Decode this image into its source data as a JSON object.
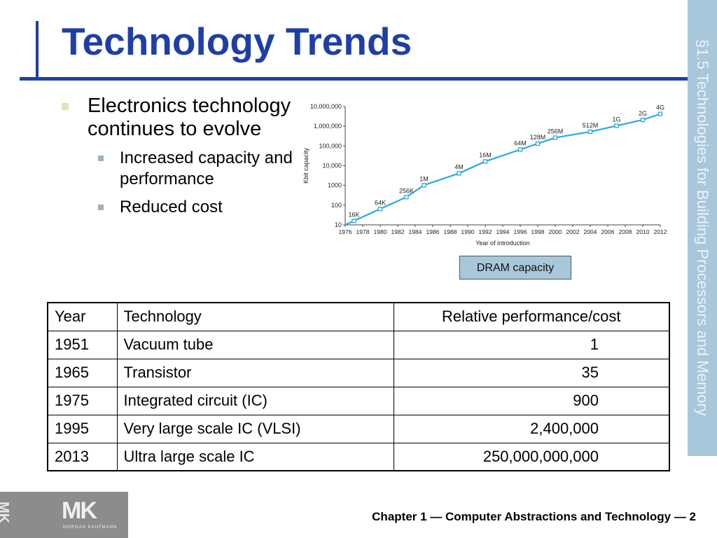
{
  "slide": {
    "title": "Technology Trends",
    "section": "§1.5 Technologies for Building Processors and Memory",
    "bullets": [
      {
        "text": "Electronics technology continues to evolve",
        "sub": [
          "Increased capacity and performance",
          "Reduced cost"
        ]
      }
    ],
    "chart_caption": "DRAM capacity",
    "footer": "Chapter 1 — Computer Abstractions and Technology — 2",
    "logo_text": "MK",
    "logo_subtext": "MORGAN KAUFMANN"
  },
  "table": {
    "headers": [
      "Year",
      "Technology",
      "Relative performance/cost"
    ],
    "rows": [
      [
        "1951",
        "Vacuum tube",
        "1"
      ],
      [
        "1965",
        "Transistor",
        "35"
      ],
      [
        "1975",
        "Integrated circuit (IC)",
        "900"
      ],
      [
        "1995",
        "Very large scale IC (VLSI)",
        "2,400,000"
      ],
      [
        "2013",
        "Ultra large scale IC",
        "250,000,000,000"
      ]
    ]
  },
  "chart_data": {
    "type": "line",
    "xlabel": "Year of introduction",
    "ylabel": "Kbit capacity",
    "log_y": true,
    "ylim": [
      10,
      10000000
    ],
    "xlim": [
      1976,
      2012
    ],
    "x_ticks": [
      "1976",
      "1978",
      "1980",
      "1982",
      "1984",
      "1986",
      "1988",
      "1990",
      "1992",
      "1994",
      "1996",
      "1998",
      "2000",
      "2002",
      "2004",
      "2006",
      "2008",
      "2010",
      "2012"
    ],
    "y_ticks": [
      "10",
      "100",
      "1000",
      "10,000",
      "100,000",
      "1,000,000",
      "10,000,000"
    ],
    "y_tick_values": [
      10,
      100,
      1000,
      10000,
      100000,
      1000000,
      10000000
    ],
    "series": [
      {
        "color": "#29a9e1",
        "points": [
          {
            "x": 1976,
            "y": 10,
            "label": ""
          },
          {
            "x": 1977,
            "y": 16,
            "label": "16K"
          },
          {
            "x": 1980,
            "y": 64,
            "label": "64K"
          },
          {
            "x": 1983,
            "y": 256,
            "label": "256K"
          },
          {
            "x": 1985,
            "y": 1024,
            "label": "1M"
          },
          {
            "x": 1989,
            "y": 4096,
            "label": "4M"
          },
          {
            "x": 1992,
            "y": 16384,
            "label": "16M"
          },
          {
            "x": 1996,
            "y": 65536,
            "label": "64M"
          },
          {
            "x": 1998,
            "y": 131072,
            "label": "128M"
          },
          {
            "x": 2000,
            "y": 262144,
            "label": "256M"
          },
          {
            "x": 2004,
            "y": 524288,
            "label": "512M"
          },
          {
            "x": 2007,
            "y": 1048576,
            "label": "1G"
          },
          {
            "x": 2010,
            "y": 2097152,
            "label": "2G"
          },
          {
            "x": 2012,
            "y": 4194304,
            "label": "4G"
          }
        ]
      }
    ]
  }
}
